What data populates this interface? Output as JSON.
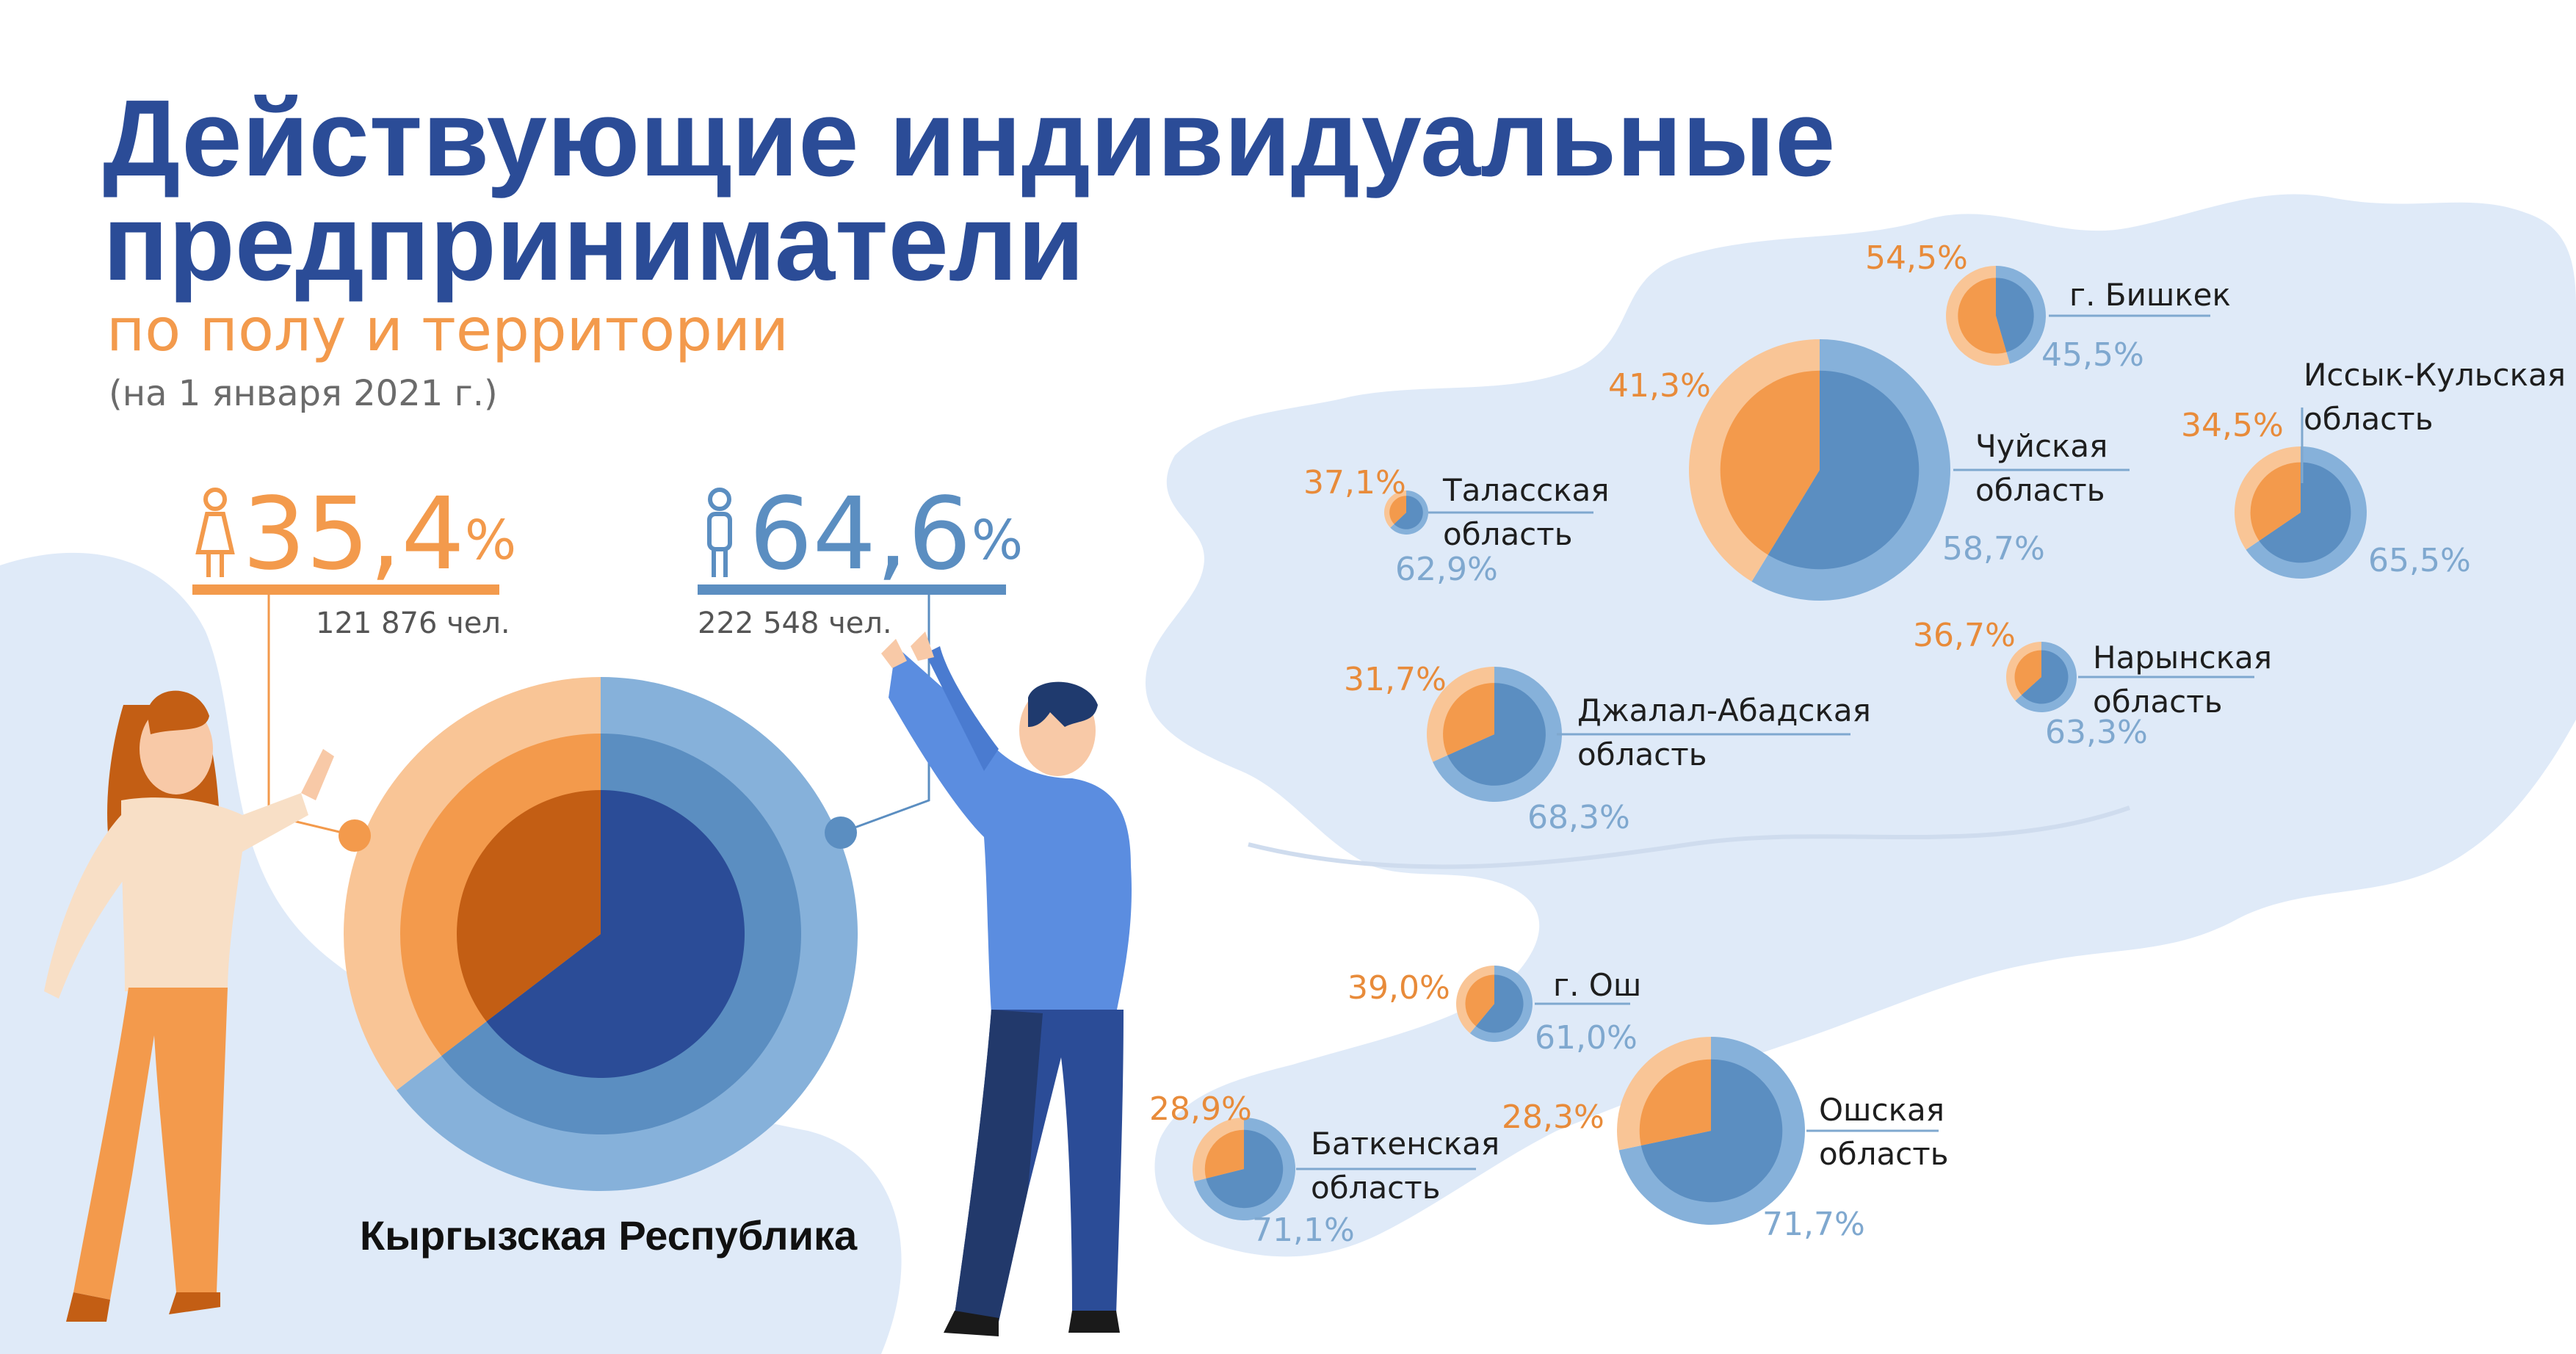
{
  "header": {
    "title_line1": "Действующие индивидуальные",
    "title_line2": "предприниматели",
    "subtitle": "по полу и территории",
    "date": "(на 1 января 2021 г.)"
  },
  "national": {
    "female_pct": "35,4",
    "male_pct": "64,6",
    "pct_sign": "%",
    "female_count": "121 876 чел.",
    "male_count": "222 548 чел.",
    "country_label": "Кыргызская Республика"
  },
  "colors": {
    "title": "#2b4c97",
    "female": "#f39a4c",
    "male": "#5b8ec1",
    "map": "#dfeaf8"
  },
  "chart_data": {
    "type": "pie",
    "title": "Действующие индивидуальные предприниматели",
    "series_names": [
      "женщины",
      "мужчины"
    ],
    "regions": [
      {
        "name": "Кыргызская Республика",
        "female": 35.4,
        "male": 64.6,
        "female_count": 121876,
        "male_count": 222548
      },
      {
        "name": "г. Бишкек",
        "female": 54.5,
        "male": 45.5
      },
      {
        "name": "Чуйская область",
        "female": 41.3,
        "male": 58.7
      },
      {
        "name": "Таласская область",
        "female": 37.1,
        "male": 62.9
      },
      {
        "name": "Иссык-Кульская область",
        "female": 34.5,
        "male": 65.5
      },
      {
        "name": "Нарынская область",
        "female": 36.7,
        "male": 63.3
      },
      {
        "name": "Джалал-Абадская область",
        "female": 31.7,
        "male": 68.3
      },
      {
        "name": "г. Ош",
        "female": 39.0,
        "male": 61.0
      },
      {
        "name": "Баткенская область",
        "female": 28.9,
        "male": 71.1
      },
      {
        "name": "Ошская область",
        "female": 28.3,
        "male": 71.7
      }
    ]
  },
  "region_labels": [
    {
      "line1": "г. Бишкек",
      "line2": "",
      "female_text": "54,5%",
      "male_text": "45,5%"
    },
    {
      "line1": "Чуйская",
      "line2": "область",
      "female_text": "41,3%",
      "male_text": "58,7%"
    },
    {
      "line1": "Таласская",
      "line2": "область",
      "female_text": "37,1%",
      "male_text": "62,9%"
    },
    {
      "line1": "Иссык-Кульская",
      "line2": "область",
      "female_text": "34,5%",
      "male_text": "65,5%"
    },
    {
      "line1": "Нарынская",
      "line2": "область",
      "female_text": "36,7%",
      "male_text": "63,3%"
    },
    {
      "line1": "Джалал-Абадская",
      "line2": "область",
      "female_text": "31,7%",
      "male_text": "68,3%"
    },
    {
      "line1": "г. Ош",
      "line2": "",
      "female_text": "39,0%",
      "male_text": "61,0%"
    },
    {
      "line1": "Баткенская",
      "line2": "область",
      "female_text": "28,9%",
      "male_text": "71,1%"
    },
    {
      "line1": "Ошская",
      "line2": "область",
      "female_text": "28,3%",
      "male_text": "71,7%"
    }
  ]
}
